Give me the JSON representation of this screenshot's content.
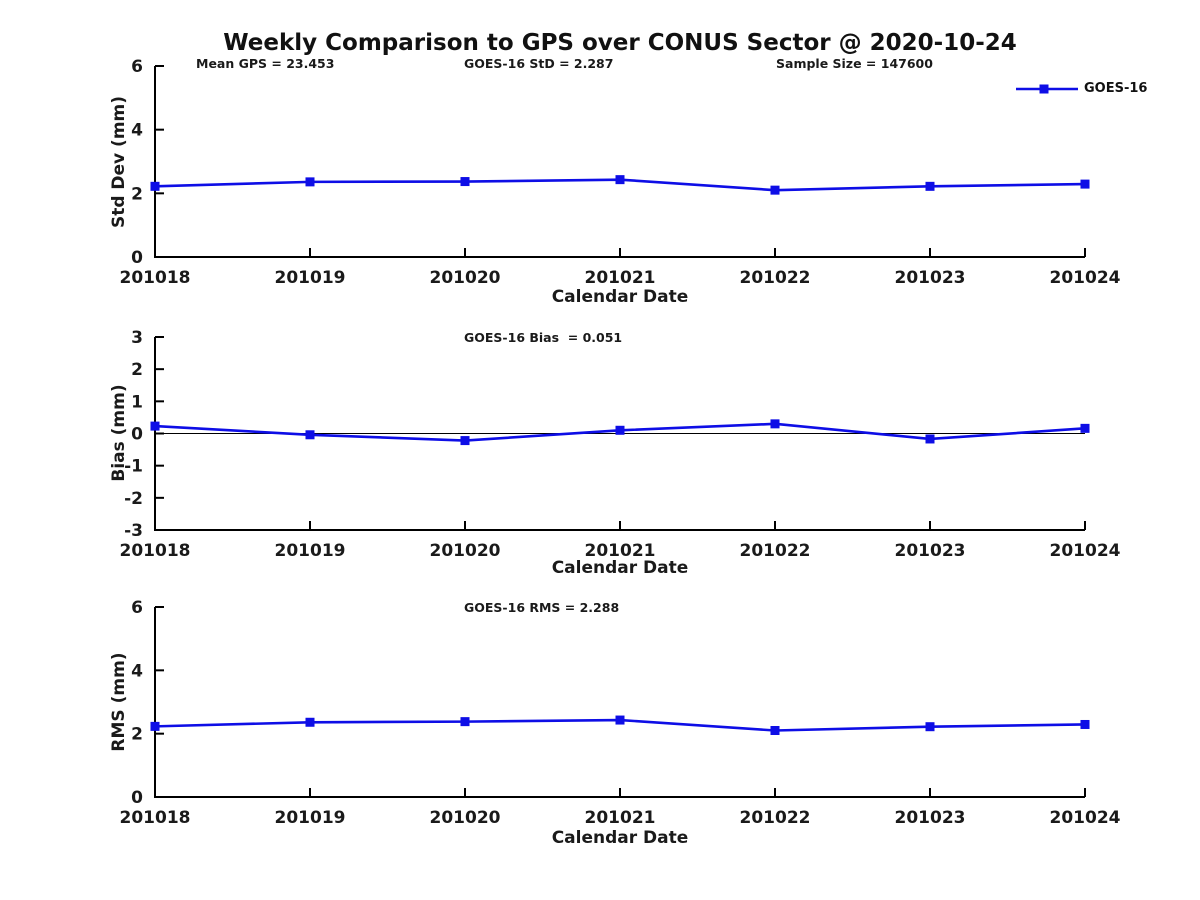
{
  "page": {
    "title": "Weekly Comparison to GPS over CONUS Sector @ 2020-10-24"
  },
  "colors": {
    "line": "#0E0EE6",
    "marker": "#0E0EE6",
    "axis": "#000000",
    "zero_line": "#000000",
    "text": "#1a1a1a",
    "background": "#ffffff"
  },
  "legend": {
    "label": "GOES-16",
    "position": "top-right"
  },
  "xlabel": "Calendar Date",
  "categories": [
    "201018",
    "201019",
    "201020",
    "201021",
    "201022",
    "201023",
    "201024"
  ],
  "chart_data": [
    {
      "type": "line",
      "ylabel": "Std Dev (mm)",
      "xlabel": "Calendar Date",
      "ylim": [
        0,
        6
      ],
      "yticks": [
        0,
        2,
        4,
        6
      ],
      "grid": false,
      "legend_position": "top-right",
      "marker": "square",
      "categories": [
        "201018",
        "201019",
        "201020",
        "201021",
        "201022",
        "201023",
        "201024"
      ],
      "annotations": [
        {
          "text": "Mean GPS = 23.453"
        },
        {
          "text": "GOES-16 StD = 2.287"
        },
        {
          "text": "Sample Size = 147600"
        }
      ],
      "series": [
        {
          "name": "GOES-16",
          "values": [
            2.22,
            2.36,
            2.37,
            2.43,
            2.1,
            2.22,
            2.29
          ]
        }
      ]
    },
    {
      "type": "line",
      "ylabel": "Bias (mm)",
      "xlabel": "Calendar Date",
      "ylim": [
        -3,
        3
      ],
      "yticks": [
        -3,
        -2,
        -1,
        0,
        1,
        2,
        3
      ],
      "grid": false,
      "zero_line": true,
      "marker": "square",
      "categories": [
        "201018",
        "201019",
        "201020",
        "201021",
        "201022",
        "201023",
        "201024"
      ],
      "annotations": [
        {
          "text": "GOES-16 Bias  = 0.051"
        }
      ],
      "series": [
        {
          "name": "GOES-16",
          "values": [
            0.23,
            -0.04,
            -0.22,
            0.1,
            0.3,
            -0.17,
            0.16
          ]
        }
      ]
    },
    {
      "type": "line",
      "ylabel": "RMS (mm)",
      "xlabel": "Calendar Date",
      "ylim": [
        0,
        6
      ],
      "yticks": [
        0,
        2,
        4,
        6
      ],
      "grid": false,
      "marker": "square",
      "categories": [
        "201018",
        "201019",
        "201020",
        "201021",
        "201022",
        "201023",
        "201024"
      ],
      "annotations": [
        {
          "text": "GOES-16 RMS = 2.288"
        }
      ],
      "series": [
        {
          "name": "GOES-16",
          "values": [
            2.23,
            2.36,
            2.38,
            2.43,
            2.1,
            2.22,
            2.29
          ]
        }
      ]
    }
  ]
}
